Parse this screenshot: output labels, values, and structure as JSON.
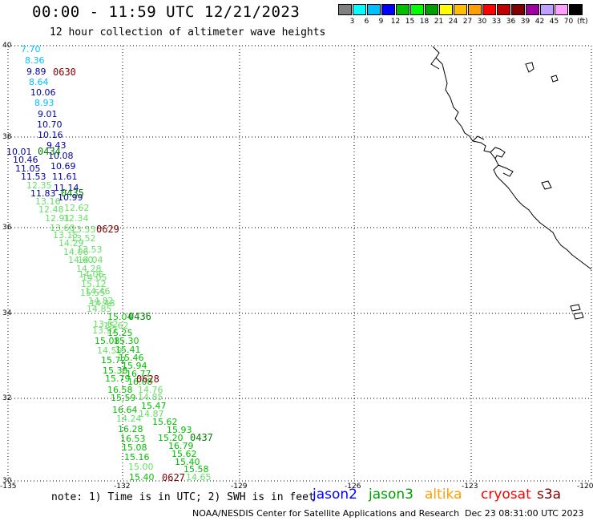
{
  "header": {
    "title": "00:00 - 11:59 UTC 12/21/2023",
    "subtitle": "12 hour collection of altimeter wave heights"
  },
  "color_scale": {
    "unit": "(ft)",
    "colors": [
      "#808080",
      "#00ffff",
      "#00bfff",
      "#0000ff",
      "#00bf00",
      "#00ff00",
      "#009f00",
      "#ffff00",
      "#ffbf00",
      "#ff9f00",
      "#ff0000",
      "#bf0000",
      "#800000",
      "#9f009f",
      "#bf9fff",
      "#ff9fff",
      "#000000"
    ],
    "labels": [
      "3",
      "6",
      "9",
      "12",
      "15",
      "18",
      "21",
      "24",
      "27",
      "30",
      "33",
      "36",
      "39",
      "42",
      "45",
      "70"
    ]
  },
  "axes": {
    "lat_labels": [
      "40",
      "38",
      "36",
      "34",
      "32",
      "30"
    ],
    "lon_labels": [
      "-135",
      "-132",
      "-129",
      "-126",
      "-123",
      "-120"
    ]
  },
  "footer": {
    "note": "note: 1) Time is in UTC; 2) SWH is in feet",
    "credit": "NOAA/NESDIS Center for Satellite Applications and Research",
    "timestamp": "Dec 23 08:31:00 UTC 2023",
    "satellites": [
      {
        "name": "jason2",
        "color": "#0000ff"
      },
      {
        "name": "jason3",
        "color": "#009f00"
      },
      {
        "name": "altika",
        "color": "#ff9f00"
      },
      {
        "name": "cryosat",
        "color": "#ff0000"
      },
      {
        "name": "s3a",
        "color": "#800000"
      }
    ]
  },
  "colors": {
    "blue": "#00009f",
    "cyan": "#00bfff",
    "green": "#00bf00",
    "lightgreen": "#66e066",
    "darkred": "#7f0000",
    "darkgreen": "#007f00"
  },
  "time_labels": [
    {
      "text": "0630",
      "color": "#7f0000"
    },
    {
      "text": "0434",
      "color": "#007f00"
    },
    {
      "text": "0435",
      "color": "#007f00"
    },
    {
      "text": "0629",
      "color": "#7f0000"
    },
    {
      "text": "0436",
      "color": "#007f00"
    },
    {
      "text": "0628",
      "color": "#7f0000"
    },
    {
      "text": "0437",
      "color": "#007f00"
    },
    {
      "text": "0627",
      "color": "#7f0000"
    }
  ],
  "wave_values": [
    {
      "v": "7.70",
      "c": "#00bfff"
    },
    {
      "v": "8.36",
      "c": "#00bfff"
    },
    {
      "v": "9.89",
      "c": "#00009f"
    },
    {
      "v": "8.64",
      "c": "#00bfff"
    },
    {
      "v": "10.06",
      "c": "#00009f"
    },
    {
      "v": "8.93",
      "c": "#00bfff"
    },
    {
      "v": "9.01",
      "c": "#00009f"
    },
    {
      "v": "10.70",
      "c": "#00009f"
    },
    {
      "v": "10.16",
      "c": "#00009f"
    },
    {
      "v": "9.43",
      "c": "#00009f"
    },
    {
      "v": "10.01",
      "c": "#00009f"
    },
    {
      "v": "10.08",
      "c": "#00009f"
    },
    {
      "v": "10.46",
      "c": "#00009f"
    },
    {
      "v": "10.69",
      "c": "#00009f"
    },
    {
      "v": "11.05",
      "c": "#00009f"
    },
    {
      "v": "11.53",
      "c": "#00009f"
    },
    {
      "v": "11.61",
      "c": "#00009f"
    },
    {
      "v": "12.35",
      "c": "#66e066"
    },
    {
      "v": "11.14",
      "c": "#00009f"
    },
    {
      "v": "11.83",
      "c": "#00009f"
    },
    {
      "v": "10.99",
      "c": "#00009f"
    },
    {
      "v": "13.16",
      "c": "#66e066"
    },
    {
      "v": "12.48",
      "c": "#66e066"
    },
    {
      "v": "12.62",
      "c": "#66e066"
    },
    {
      "v": "12.91",
      "c": "#66e066"
    },
    {
      "v": "12.34",
      "c": "#66e066"
    },
    {
      "v": "13.60",
      "c": "#66e066"
    },
    {
      "v": "13.55",
      "c": "#66e066"
    },
    {
      "v": "13.15",
      "c": "#66e066"
    },
    {
      "v": "13.52",
      "c": "#66e066"
    },
    {
      "v": "14.29",
      "c": "#66e066"
    },
    {
      "v": "14.06",
      "c": "#66e066"
    },
    {
      "v": "13.53",
      "c": "#66e066"
    },
    {
      "v": "14.60",
      "c": "#66e066"
    },
    {
      "v": "14.04",
      "c": "#66e066"
    },
    {
      "v": "14.28",
      "c": "#66e066"
    },
    {
      "v": "14.06",
      "c": "#66e066"
    },
    {
      "v": "14.05",
      "c": "#66e066"
    },
    {
      "v": "15.12",
      "c": "#66e066"
    },
    {
      "v": "14.46",
      "c": "#66e066"
    },
    {
      "v": "15.55",
      "c": "#66e066"
    },
    {
      "v": "14.82",
      "c": "#66e066"
    },
    {
      "v": "14.48",
      "c": "#66e066"
    },
    {
      "v": "14.85",
      "c": "#66e066"
    },
    {
      "v": "15.04",
      "c": "#00bf00"
    },
    {
      "v": "13.62",
      "c": "#66e066"
    },
    {
      "v": "15.62",
      "c": "#66e066"
    },
    {
      "v": "13.92",
      "c": "#66e066"
    },
    {
      "v": "15.25",
      "c": "#00bf00"
    },
    {
      "v": "15.08",
      "c": "#00bf00"
    },
    {
      "v": "15.30",
      "c": "#00bf00"
    },
    {
      "v": "14.59",
      "c": "#66e066"
    },
    {
      "v": "15.41",
      "c": "#00bf00"
    },
    {
      "v": "15.72",
      "c": "#00bf00"
    },
    {
      "v": "15.46",
      "c": "#00bf00"
    },
    {
      "v": "15.94",
      "c": "#00bf00"
    },
    {
      "v": "15.38",
      "c": "#00bf00"
    },
    {
      "v": "16.77",
      "c": "#00bf00"
    },
    {
      "v": "15.79",
      "c": "#00bf00"
    },
    {
      "v": "16.08",
      "c": "#00bf00"
    },
    {
      "v": "16.58",
      "c": "#00bf00"
    },
    {
      "v": "14.76",
      "c": "#66e066"
    },
    {
      "v": "15.59",
      "c": "#00bf00"
    },
    {
      "v": "14.85",
      "c": "#66e066"
    },
    {
      "v": "15.47",
      "c": "#00bf00"
    },
    {
      "v": "16.64",
      "c": "#00bf00"
    },
    {
      "v": "14.87",
      "c": "#66e066"
    },
    {
      "v": "14.24",
      "c": "#66e066"
    },
    {
      "v": "15.62",
      "c": "#00bf00"
    },
    {
      "v": "16.28",
      "c": "#00bf00"
    },
    {
      "v": "15.93",
      "c": "#00bf00"
    },
    {
      "v": "16.53",
      "c": "#00bf00"
    },
    {
      "v": "15.20",
      "c": "#00bf00"
    },
    {
      "v": "16.79",
      "c": "#00bf00"
    },
    {
      "v": "15.08",
      "c": "#00bf00"
    },
    {
      "v": "15.62",
      "c": "#00bf00"
    },
    {
      "v": "15.16",
      "c": "#00bf00"
    },
    {
      "v": "15.40",
      "c": "#00bf00"
    },
    {
      "v": "15.00",
      "c": "#66e066"
    },
    {
      "v": "15.58",
      "c": "#00bf00"
    },
    {
      "v": "15.40",
      "c": "#00bf00"
    },
    {
      "v": "14.65",
      "c": "#66e066"
    }
  ]
}
